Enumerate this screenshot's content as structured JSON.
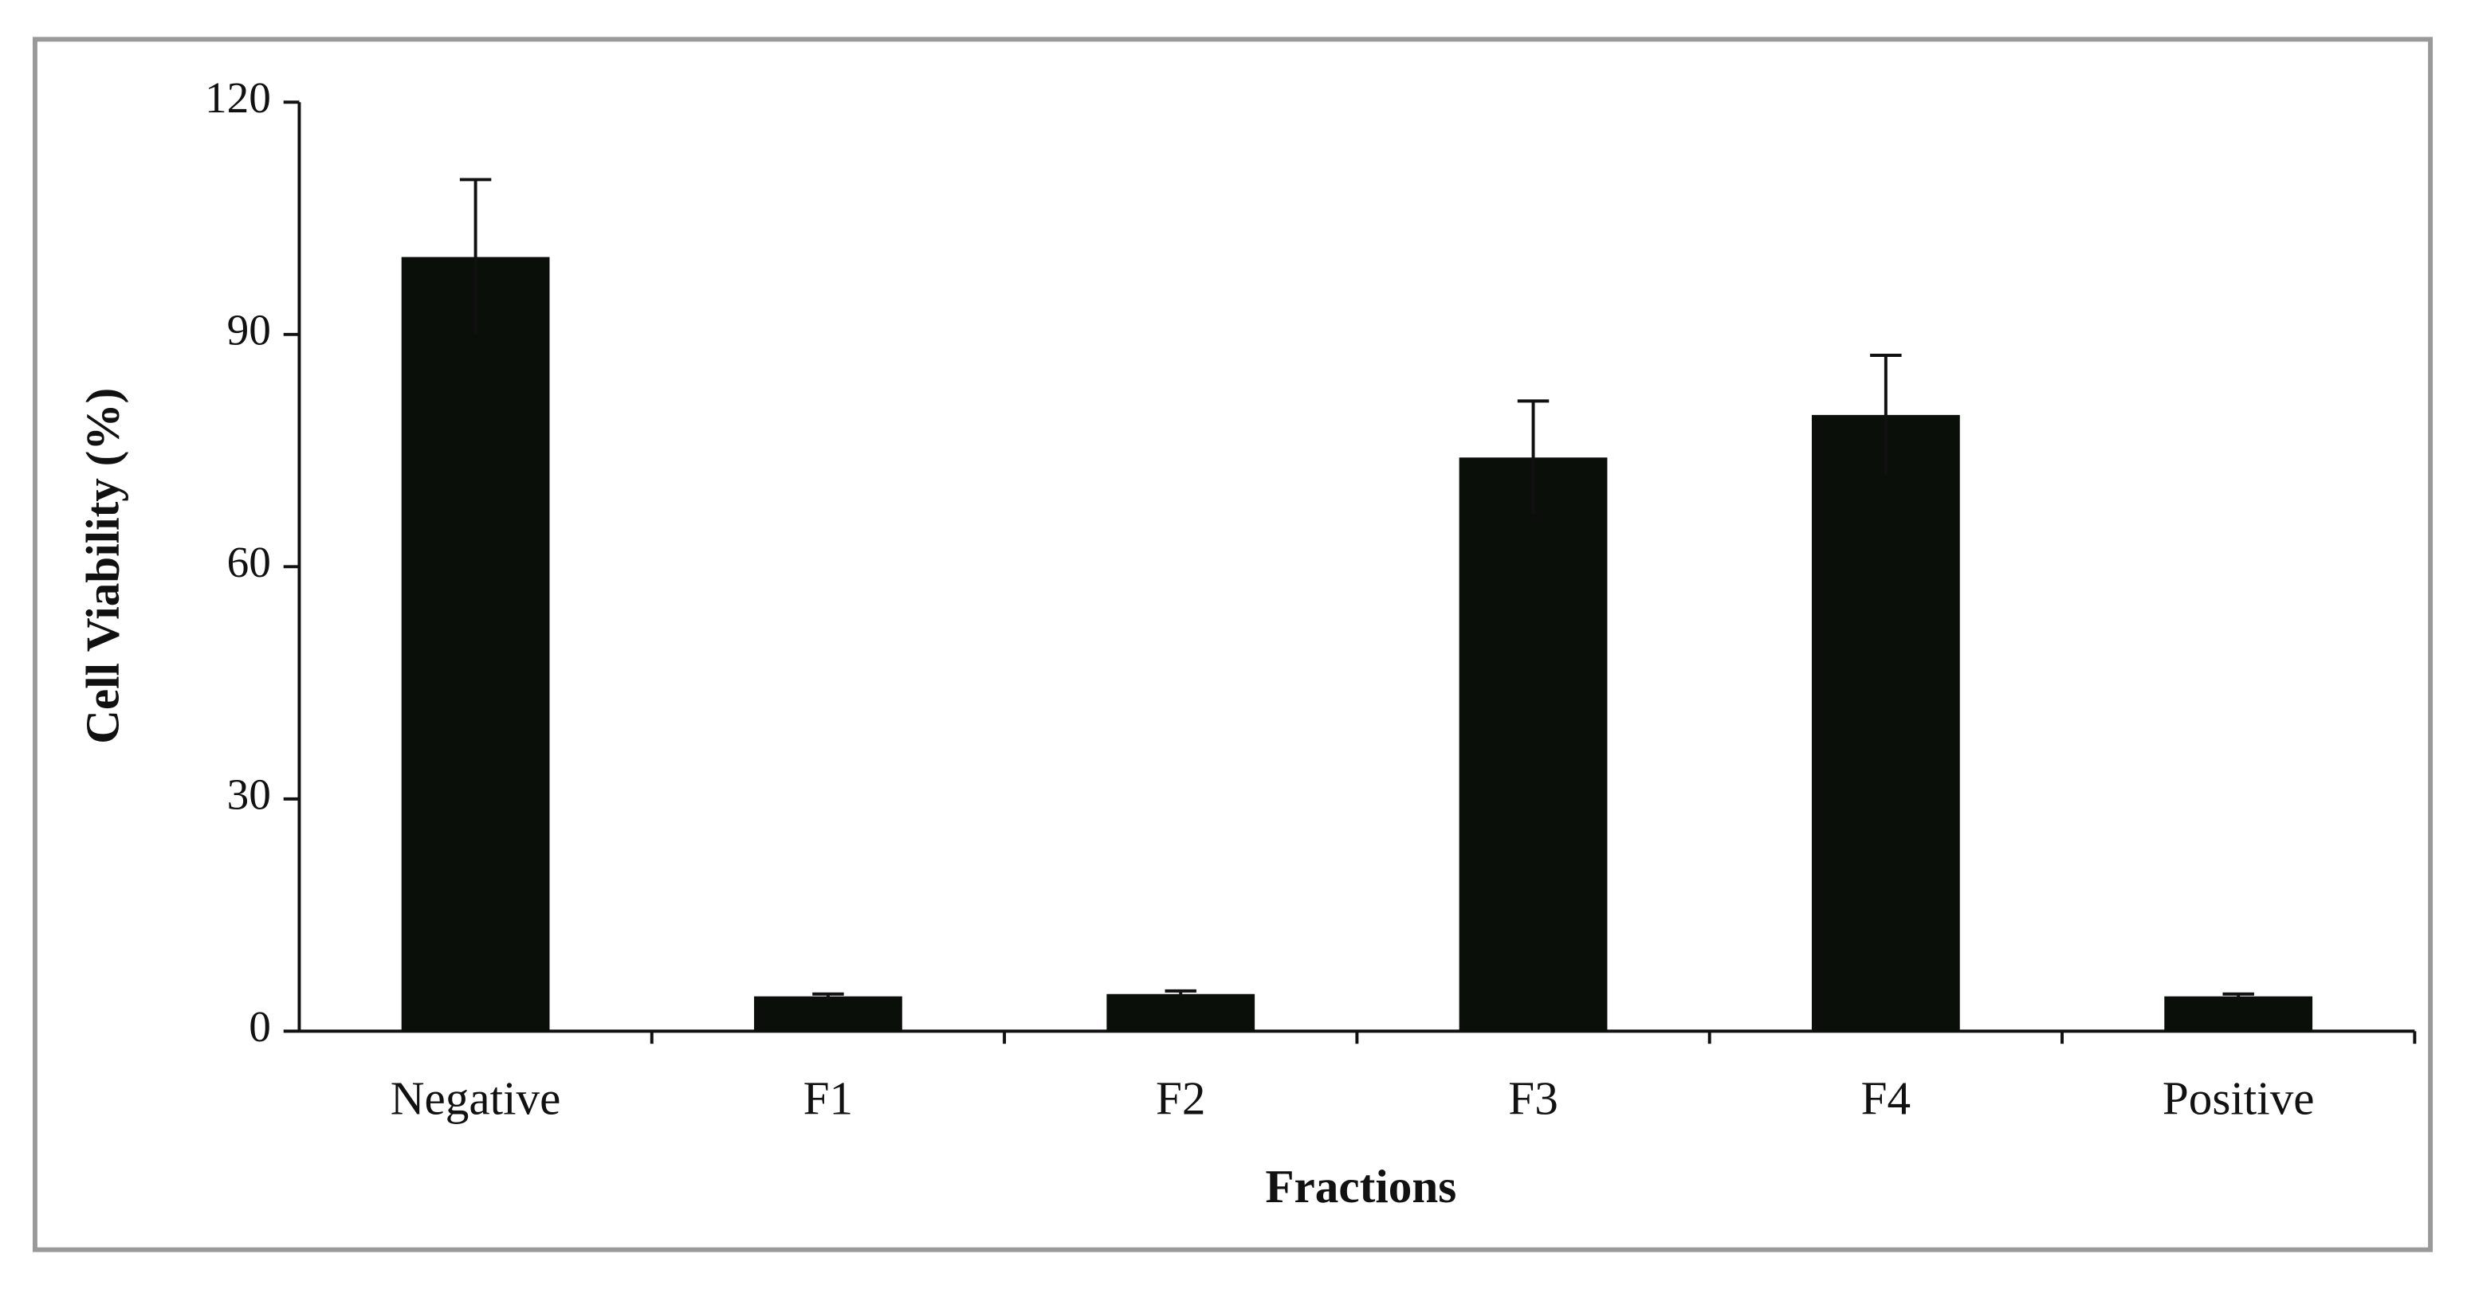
{
  "chart_data": {
    "type": "bar",
    "x_label": "Fractions",
    "y_label": "Cell Viability (%)",
    "categories": [
      "Negative",
      "F1",
      "F2",
      "F3",
      "F4",
      "Positive"
    ],
    "values": [
      100,
      4.5,
      4.8,
      74.1,
      79.6,
      4.5
    ],
    "errors": [
      10,
      0.3,
      0.4,
      7.3,
      7.7,
      0.3
    ],
    "color": "#0a0f0a",
    "ylim": [
      0,
      120
    ],
    "yticks": [
      0,
      30,
      60,
      90,
      120
    ],
    "grid": false
  }
}
